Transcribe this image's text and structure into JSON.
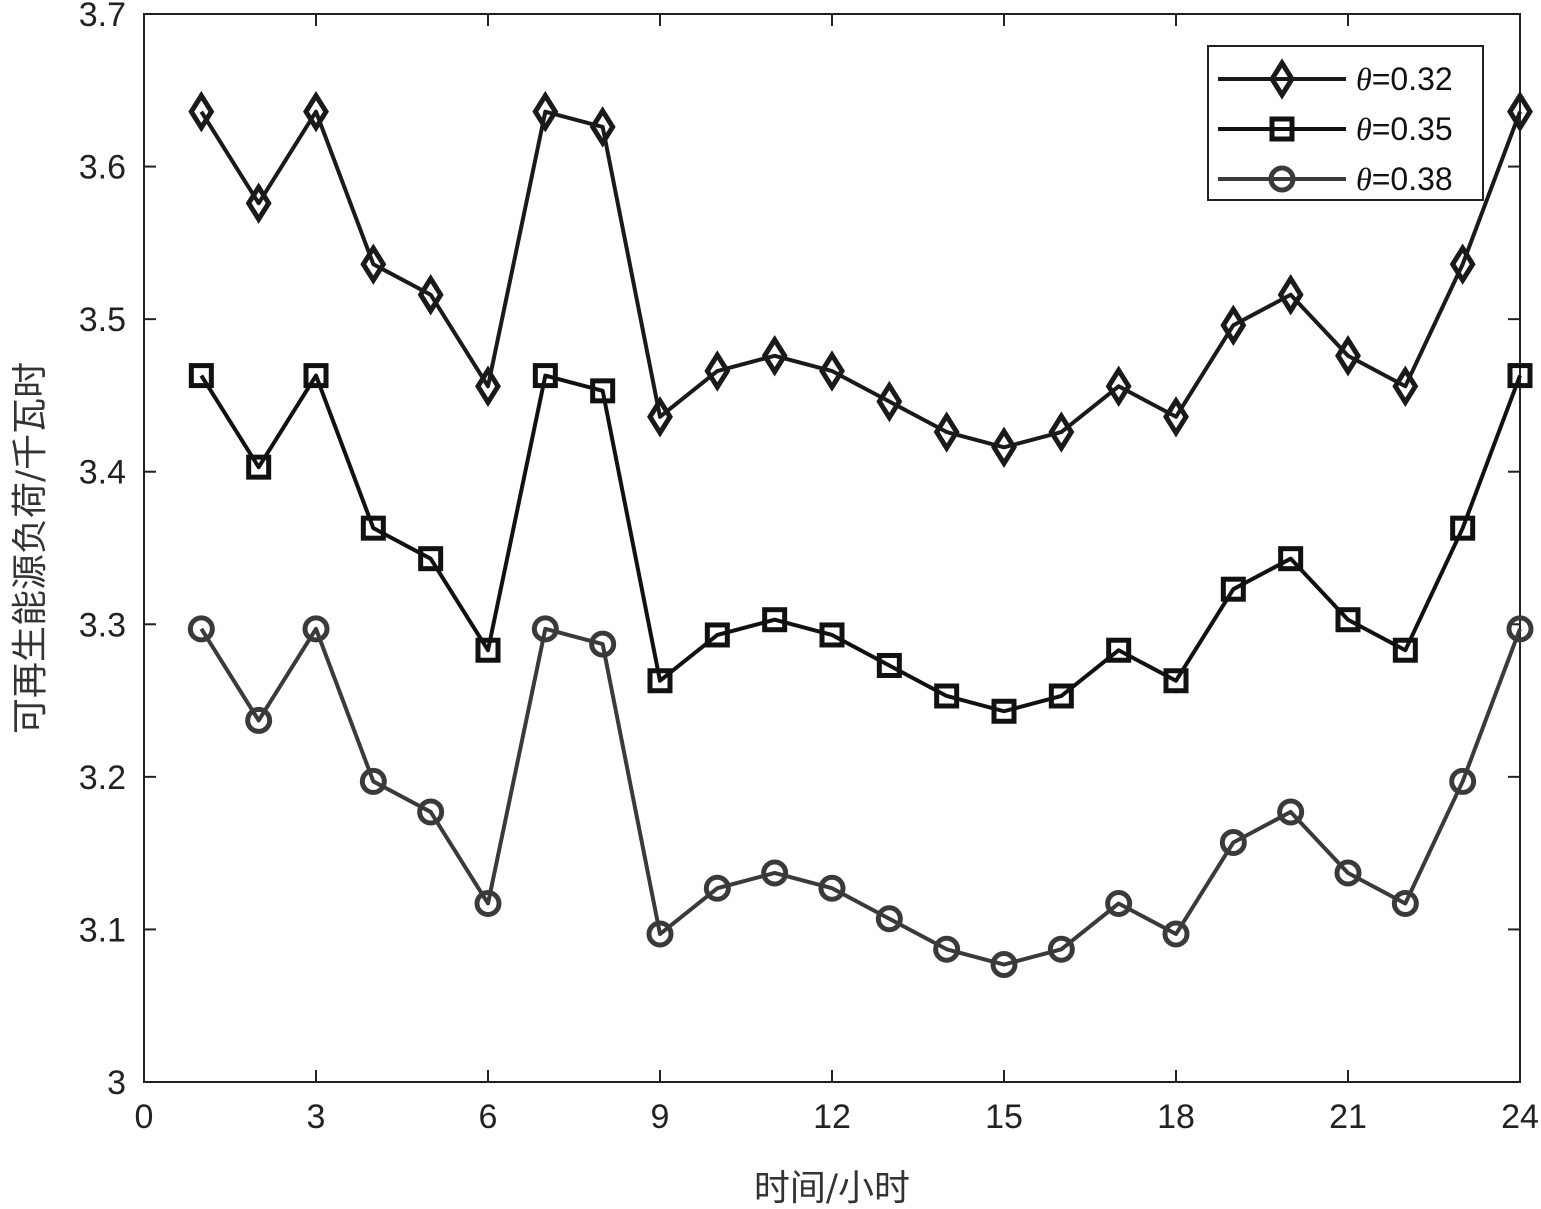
{
  "chart_data": {
    "type": "line",
    "title": "",
    "xlabel": "时间/小时",
    "ylabel": "可再生能源负荷/千瓦时",
    "xlim": [
      0,
      24
    ],
    "ylim": [
      3.0,
      3.7
    ],
    "xticks": [
      0,
      3,
      6,
      9,
      12,
      15,
      18,
      21,
      24
    ],
    "xtick_labels": [
      "0",
      "3",
      "6",
      "9",
      "12",
      "15",
      "18",
      "21",
      "24"
    ],
    "yticks": [
      3.0,
      3.1,
      3.2,
      3.3,
      3.4,
      3.5,
      3.6,
      3.7
    ],
    "ytick_labels": [
      "3",
      "3.1",
      "3.2",
      "3.3",
      "3.4",
      "3.5",
      "3.6",
      "3.7"
    ],
    "grid": false,
    "legend_position": "top-right",
    "x": [
      1,
      2,
      3,
      4,
      5,
      6,
      7,
      8,
      9,
      10,
      11,
      12,
      13,
      14,
      15,
      16,
      17,
      18,
      19,
      20,
      21,
      22,
      23,
      24
    ],
    "series": [
      {
        "name_symbol": "θ",
        "name_value": "=0.32",
        "marker": "diamond",
        "color": "#1a1a1a",
        "values": [
          3.636,
          3.576,
          3.636,
          3.536,
          3.516,
          3.456,
          3.636,
          3.626,
          3.436,
          3.466,
          3.476,
          3.466,
          3.446,
          3.426,
          3.416,
          3.426,
          3.456,
          3.436,
          3.496,
          3.516,
          3.476,
          3.456,
          3.536,
          3.636
        ]
      },
      {
        "name_symbol": "θ",
        "name_value": "=0.35",
        "marker": "square",
        "color": "#111111",
        "values": [
          3.463,
          3.403,
          3.463,
          3.363,
          3.343,
          3.283,
          3.463,
          3.453,
          3.263,
          3.293,
          3.303,
          3.293,
          3.273,
          3.253,
          3.243,
          3.253,
          3.283,
          3.263,
          3.323,
          3.343,
          3.303,
          3.283,
          3.363,
          3.463
        ]
      },
      {
        "name_symbol": "θ",
        "name_value": "=0.38",
        "marker": "circle",
        "color": "#3c3a38",
        "values": [
          3.297,
          3.237,
          3.297,
          3.197,
          3.177,
          3.117,
          3.297,
          3.287,
          3.097,
          3.127,
          3.137,
          3.127,
          3.107,
          3.087,
          3.077,
          3.087,
          3.117,
          3.097,
          3.157,
          3.177,
          3.137,
          3.117,
          3.197,
          3.297
        ]
      }
    ]
  }
}
